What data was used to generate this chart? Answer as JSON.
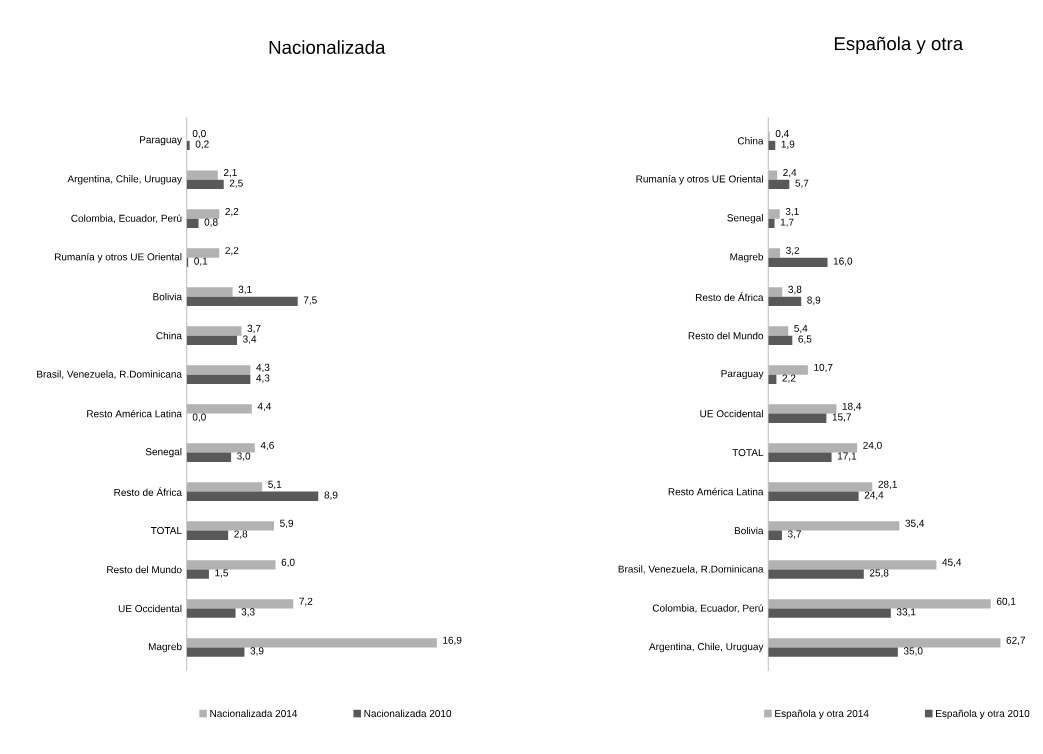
{
  "chart_data": [
    {
      "type": "bar",
      "orientation": "horizontal",
      "title": "Nacionalizada",
      "legend": "bottom",
      "categories": [
        "Paraguay",
        "Argentina, Chile, Uruguay",
        "Colombia, Ecuador, Perú",
        "Rumanía y otros UE Oriental",
        "Bolivia",
        "China",
        "Brasil, Venezuela, R.Dominicana",
        "Resto América Latina",
        "Senegal",
        "Resto de África",
        "TOTAL",
        "Resto del Mundo",
        "UE Occidental",
        "Magreb"
      ],
      "series": [
        {
          "name": "Nacionalizada 2014",
          "color": "#b2b2b2",
          "values": [
            0.0,
            2.1,
            2.2,
            2.2,
            3.1,
            3.7,
            4.3,
            4.4,
            4.6,
            5.1,
            5.9,
            6.0,
            7.2,
            16.9
          ],
          "value_labels": [
            "0,0",
            "2,1",
            "2,2",
            "2,2",
            "3,1",
            "3,7",
            "4,3",
            "4,4",
            "4,6",
            "5,1",
            "5,9",
            "6,0",
            "7,2",
            "16,9"
          ]
        },
        {
          "name": "Nacionalizada 2010",
          "color": "#595959",
          "values": [
            0.2,
            2.5,
            0.8,
            0.1,
            7.5,
            3.4,
            4.3,
            0.0,
            3.0,
            8.9,
            2.8,
            1.5,
            3.3,
            3.9
          ],
          "value_labels": [
            "0,2",
            "2,5",
            "0,8",
            "0,1",
            "7,5",
            "3,4",
            "4,3",
            "0,0",
            "3,0",
            "8,9",
            "2,8",
            "1,5",
            "3,3",
            "3,9"
          ]
        }
      ]
    },
    {
      "type": "bar",
      "orientation": "horizontal",
      "title": "Española y otra",
      "legend": "bottom",
      "categories": [
        "China",
        "Rumanía y otros UE Oriental",
        "Senegal",
        "Magreb",
        "Resto de África",
        "Resto del Mundo",
        "Paraguay",
        "UE Occidental",
        "TOTAL",
        "Resto América Latina",
        "Bolivia",
        "Brasil, Venezuela, R.Dominicana",
        "Colombia, Ecuador, Perú",
        "Argentina, Chile, Uruguay"
      ],
      "series": [
        {
          "name": "Española y otra 2014",
          "color": "#b2b2b2",
          "values": [
            0.4,
            2.4,
            3.1,
            3.2,
            3.8,
            5.4,
            10.7,
            18.4,
            24.0,
            28.1,
            35.4,
            45.4,
            60.1,
            62.7
          ],
          "value_labels": [
            "0,4",
            "2,4",
            "3,1",
            "3,2",
            "3,8",
            "5,4",
            "10,7",
            "18,4",
            "24,0",
            "28,1",
            "35,4",
            "45,4",
            "60,1",
            "62,7"
          ]
        },
        {
          "name": "Española y otra 2010",
          "color": "#595959",
          "values": [
            1.9,
            5.7,
            1.7,
            16.0,
            8.9,
            6.5,
            2.2,
            15.7,
            17.1,
            24.4,
            3.7,
            25.8,
            33.1,
            35.0
          ],
          "value_labels": [
            "1,9",
            "5,7",
            "1,7",
            "16,0",
            "8,9",
            "6,5",
            "2,2",
            "15,7",
            "17,1",
            "24,4",
            "3,7",
            "25,8",
            "33,1",
            "35,0"
          ]
        }
      ]
    }
  ]
}
